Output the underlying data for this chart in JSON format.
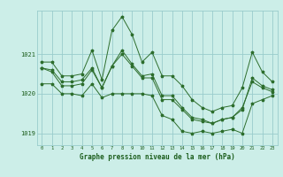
{
  "bg_color": "#cceee8",
  "grid_color": "#99cccc",
  "line_color": "#2d6e2d",
  "marker_color": "#2d6e2d",
  "xlabel": "Graphe pression niveau de la mer (hPa)",
  "hours": [
    0,
    1,
    2,
    3,
    4,
    5,
    6,
    7,
    8,
    9,
    10,
    11,
    12,
    13,
    14,
    15,
    16,
    17,
    18,
    19,
    20,
    21,
    22,
    23
  ],
  "series_max": [
    1020.8,
    1020.8,
    1020.45,
    1020.45,
    1020.5,
    1021.1,
    1020.35,
    1021.6,
    1021.95,
    1021.5,
    1020.8,
    1021.05,
    1020.45,
    1020.45,
    1020.2,
    1019.85,
    1019.65,
    1019.55,
    1019.65,
    1019.7,
    1020.15,
    1021.05,
    1020.55,
    1020.3
  ],
  "series_min": [
    1020.25,
    1020.25,
    1020.0,
    1020.0,
    1019.95,
    1020.25,
    1019.9,
    1020.0,
    1020.0,
    1020.0,
    1020.0,
    1019.95,
    1019.45,
    1019.35,
    1019.05,
    1019.0,
    1019.05,
    1019.0,
    1019.05,
    1019.1,
    1019.0,
    1019.75,
    1019.85,
    1019.95
  ],
  "series_avg1": [
    1020.65,
    1020.6,
    1020.3,
    1020.3,
    1020.35,
    1020.65,
    1020.15,
    1020.7,
    1021.1,
    1020.75,
    1020.45,
    1020.5,
    1019.95,
    1019.95,
    1019.65,
    1019.4,
    1019.35,
    1019.25,
    1019.35,
    1019.4,
    1019.6,
    1020.4,
    1020.2,
    1020.1
  ],
  "series_avg2": [
    1020.65,
    1020.55,
    1020.2,
    1020.2,
    1020.25,
    1020.6,
    1020.15,
    1020.7,
    1021.0,
    1020.7,
    1020.4,
    1020.4,
    1019.85,
    1019.85,
    1019.6,
    1019.35,
    1019.3,
    1019.25,
    1019.35,
    1019.4,
    1019.65,
    1020.3,
    1020.15,
    1020.05
  ],
  "ylim": [
    1018.7,
    1022.1
  ],
  "yticks": [
    1019,
    1020,
    1021
  ],
  "text_color": "#1a5c1a",
  "title_fontsize": 5.5,
  "tick_fontsize": 4.5,
  "ylabel_fontsize": 5.5
}
